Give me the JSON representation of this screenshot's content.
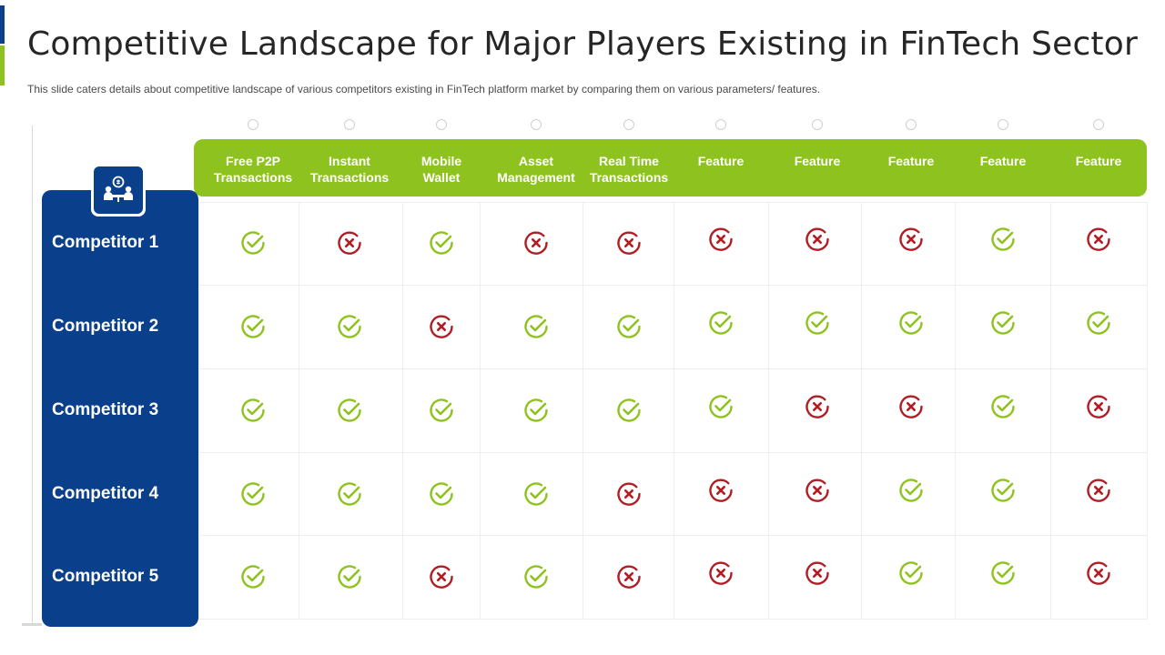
{
  "title": "Competitive Landscape for Major Players Existing in FinTech Sector",
  "subtitle": "This slide caters details about competitive landscape of various competitors existing in FinTech platform market by comparing them on various parameters/ features.",
  "colors": {
    "navy": "#0a3f8c",
    "green": "#8ec31f",
    "check": "#8ec31f",
    "cross": "#b01e24"
  },
  "logo_icon": "people-meeting-icon",
  "columns": [
    "Free P2P\nTransactions",
    "Instant\nTransactions",
    "Mobile\nWallet",
    "Asset\nManagement",
    "Real Time\nTransactions",
    "Feature",
    "Feature",
    "Feature",
    "Feature",
    "Feature"
  ],
  "competitors": [
    "Competitor 1",
    "Competitor 2",
    "Competitor 3",
    "Competitor 4",
    "Competitor 5"
  ],
  "matrix": [
    [
      "check",
      "cross",
      "check",
      "cross",
      "cross",
      "cross",
      "cross",
      "cross",
      "check",
      "cross"
    ],
    [
      "check",
      "check",
      "cross",
      "check",
      "check",
      "check",
      "check",
      "check",
      "check",
      "check"
    ],
    [
      "check",
      "check",
      "check",
      "check",
      "check",
      "check",
      "cross",
      "cross",
      "check",
      "cross"
    ],
    [
      "check",
      "check",
      "check",
      "check",
      "cross",
      "cross",
      "cross",
      "check",
      "check",
      "cross"
    ],
    [
      "check",
      "check",
      "cross",
      "check",
      "cross",
      "cross",
      "cross",
      "check",
      "check",
      "cross"
    ]
  ]
}
